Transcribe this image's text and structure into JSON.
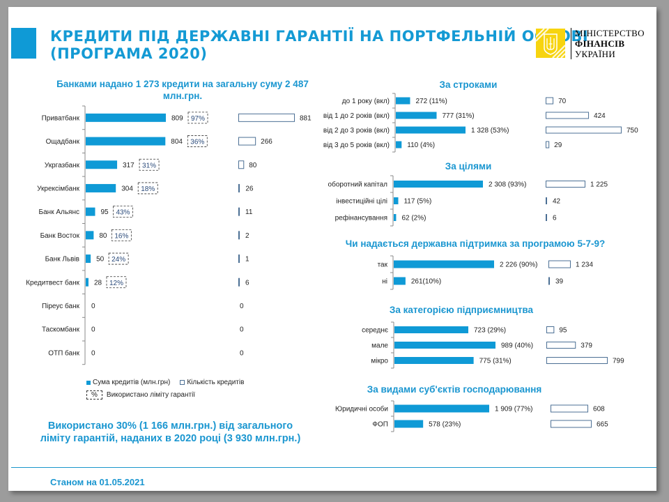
{
  "header": {
    "title_line1": "КРЕДИТИ ПІД ДЕРЖАВНІ ГАРАНТІЇ НА ПОРТФЕЛЬНІЙ ОСНОВІ",
    "title_line2": "(ПРОГРАМА 2020)"
  },
  "logo": {
    "line1": "МІНІСТЕРСТВО",
    "line2": "ФІНАНСІВ",
    "line3": "УКРАЇНИ",
    "emblem_icon": "trident-emblem-icon"
  },
  "colors": {
    "accent": "#0f9ad6",
    "bar_fill": "#0f9ad6",
    "count_bar_stroke": "#4b6f94",
    "logo_yellow": "#f7d40f"
  },
  "left_heading_line1": "Банками надано 1 273 кредити на загальну суму  2 487",
  "left_heading_line2": "млн.грн.",
  "legend": {
    "sum": "Сума кредитів (млн.грн)",
    "count": "Кількість кредитів",
    "limit_symbol": "%",
    "limit": "Використано ліміту гарантії"
  },
  "summary_line1": "Використано 30% (1 166 млн.грн.) від загального",
  "summary_line2": "ліміту гарантій,  наданих в 2020 році (3 930 млн.грн.)",
  "footer": "Станом на 01.05.2021",
  "chart_data": [
    {
      "type": "bar",
      "title": "Банками надано 1 273 кредити на загальну суму 2 487 млн.грн.",
      "categories": [
        "Приватбанк",
        "Ощадбанк",
        "Укргазбанк",
        "Укрексімбанк",
        "Банк Альянс",
        "Банк Восток",
        "Банк Львів",
        "Кредитвест банк",
        "Піреус банк",
        "Таскомбанк",
        "ОТП  банк"
      ],
      "series": [
        {
          "name": "Сума кредитів (млн.грн)",
          "values": [
            809,
            804,
            317,
            304,
            95,
            80,
            50,
            28,
            0,
            0,
            0
          ],
          "labels": [
            "809",
            "804",
            "317",
            "304",
            "95",
            "80",
            "50",
            "28",
            "0",
            "0",
            "0"
          ]
        },
        {
          "name": "Кількість кредитів",
          "values": [
            881,
            266,
            80,
            26,
            11,
            2,
            1,
            6,
            0,
            0,
            0
          ],
          "labels": [
            "881",
            "266",
            "80",
            "26",
            "11",
            "2",
            "1",
            "6",
            "0",
            "0",
            "0"
          ]
        },
        {
          "name": "Використано ліміту гарантії",
          "values": [
            "97%",
            "36%",
            "31%",
            "18%",
            "43%",
            "16%",
            "24%",
            "12%",
            null,
            null,
            null
          ]
        }
      ]
    },
    {
      "type": "bar",
      "title": "За строками",
      "categories": [
        "до 1 року (вкл)",
        "від 1 до 2 років (вкл)",
        "від 2 до 3 років (вкл)",
        "від 3 до 5 років (вкл)"
      ],
      "series": [
        {
          "name": "Сума кредитів (млн.грн)",
          "values": [
            272,
            777,
            1328,
            110
          ],
          "labels": [
            "272  (11%)",
            "777  (31%)",
            "1 328  (53%)",
            "110    (4%)"
          ]
        },
        {
          "name": "Кількість кредитів",
          "values": [
            70,
            424,
            750,
            29
          ],
          "labels": [
            "70",
            "424",
            "750",
            "29"
          ]
        }
      ]
    },
    {
      "type": "bar",
      "title": "За цілями",
      "categories": [
        "оборотний капітал",
        "інвестиційні цілі",
        "рефінансування"
      ],
      "series": [
        {
          "name": "Сума кредитів (млн.грн)",
          "values": [
            2308,
            117,
            62
          ],
          "labels": [
            "2 308 (93%)",
            "117  (5%)",
            "62  (2%)"
          ]
        },
        {
          "name": "Кількість кредитів",
          "values": [
            1225,
            42,
            6
          ],
          "labels": [
            "1 225",
            "42",
            "6"
          ]
        }
      ]
    },
    {
      "type": "bar",
      "title": "Чи надається державна підтримка за програмою 5-7-9?",
      "categories": [
        "так",
        "ні"
      ],
      "series": [
        {
          "name": "Сума кредитів (млн.грн)",
          "values": [
            2226,
            261
          ],
          "labels": [
            "2 226 (90%)",
            "261(10%)"
          ]
        },
        {
          "name": "Кількість кредитів",
          "values": [
            1234,
            39
          ],
          "labels": [
            "1 234",
            "39"
          ]
        }
      ]
    },
    {
      "type": "bar",
      "title": "За категорією підприємництва",
      "categories": [
        "середнє",
        "мале",
        "мікро"
      ],
      "series": [
        {
          "name": "Сума кредитів (млн.грн)",
          "values": [
            723,
            989,
            775
          ],
          "labels": [
            "723 (29%)",
            "989 (40%)",
            "775  (31%)"
          ]
        },
        {
          "name": "Кількість кредитів",
          "values": [
            95,
            379,
            799
          ],
          "labels": [
            "95",
            "379",
            "799"
          ]
        }
      ]
    },
    {
      "type": "bar",
      "title": "За видами суб'єктів господарювання",
      "categories": [
        "Юридичні особи",
        "ФОП"
      ],
      "series": [
        {
          "name": "Сума кредитів (млн.грн)",
          "values": [
            1909,
            578
          ],
          "labels": [
            "1 909 (77%)",
            "578 (23%)"
          ]
        },
        {
          "name": "Кількість кредитів",
          "values": [
            608,
            665
          ],
          "labels": [
            "608",
            "665"
          ]
        }
      ]
    }
  ]
}
